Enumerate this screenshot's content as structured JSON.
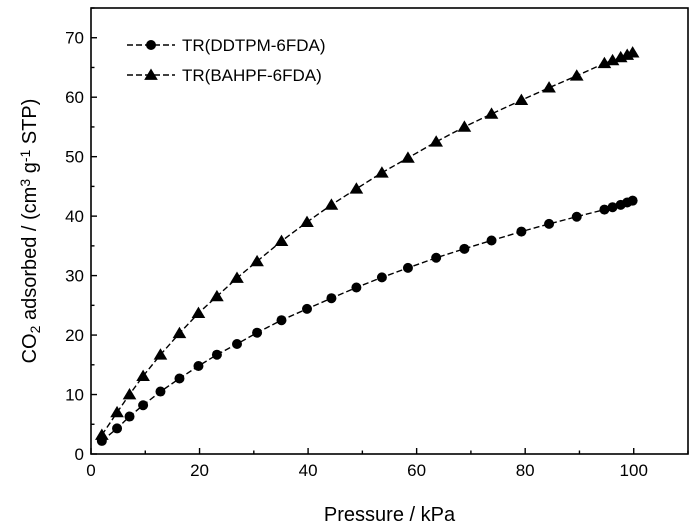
{
  "chart_data": {
    "type": "line",
    "xlabel": "Pressure / kPa",
    "ylabel": {
      "prefix": "CO",
      "sub": "2",
      "middle": " adsorbed / (cm",
      "sup1": "3",
      "middle2": " g",
      "sup2": "-1",
      "suffix": " STP)"
    },
    "xlim": [
      0,
      110
    ],
    "ylim": [
      0,
      75
    ],
    "xticks": [
      0,
      20,
      40,
      60,
      80,
      100
    ],
    "yticks": [
      0,
      10,
      20,
      30,
      40,
      50,
      60,
      70
    ],
    "grid": false,
    "legend_position": "top-left",
    "series": [
      {
        "name": "TR(DDTPM-6FDA)",
        "marker": "circle",
        "color": "#000000",
        "x": [
          2,
          4.8,
          7.1,
          9.6,
          12.8,
          16.3,
          19.8,
          23.2,
          26.9,
          30.6,
          35.1,
          39.8,
          44.3,
          48.9,
          53.6,
          58.4,
          63.6,
          68.8,
          73.8,
          79.3,
          84.4,
          89.5,
          94.6,
          96.1,
          97.6,
          98.8,
          99.8
        ],
        "y": [
          2.2,
          4.3,
          6.3,
          8.2,
          10.5,
          12.7,
          14.8,
          16.7,
          18.5,
          20.4,
          22.5,
          24.4,
          26.2,
          28.0,
          29.7,
          31.3,
          33.0,
          34.5,
          35.9,
          37.4,
          38.7,
          39.9,
          41.1,
          41.5,
          41.9,
          42.3,
          42.6
        ]
      },
      {
        "name": "TR(BAHPF-6FDA)",
        "marker": "triangle",
        "color": "#000000",
        "x": [
          2,
          4.8,
          7.1,
          9.6,
          12.8,
          16.3,
          19.8,
          23.2,
          26.9,
          30.6,
          35.1,
          39.8,
          44.3,
          48.9,
          53.6,
          58.4,
          63.6,
          68.8,
          73.8,
          79.3,
          84.4,
          89.5,
          94.6,
          96.1,
          97.6,
          98.8,
          99.8
        ],
        "y": [
          3.2,
          7.0,
          10.0,
          13.1,
          16.7,
          20.3,
          23.7,
          26.5,
          29.6,
          32.4,
          35.8,
          39.0,
          41.9,
          44.6,
          47.3,
          49.8,
          52.5,
          55.0,
          57.2,
          59.5,
          61.6,
          63.6,
          65.7,
          66.2,
          66.7,
          67.1,
          67.5
        ]
      }
    ]
  }
}
